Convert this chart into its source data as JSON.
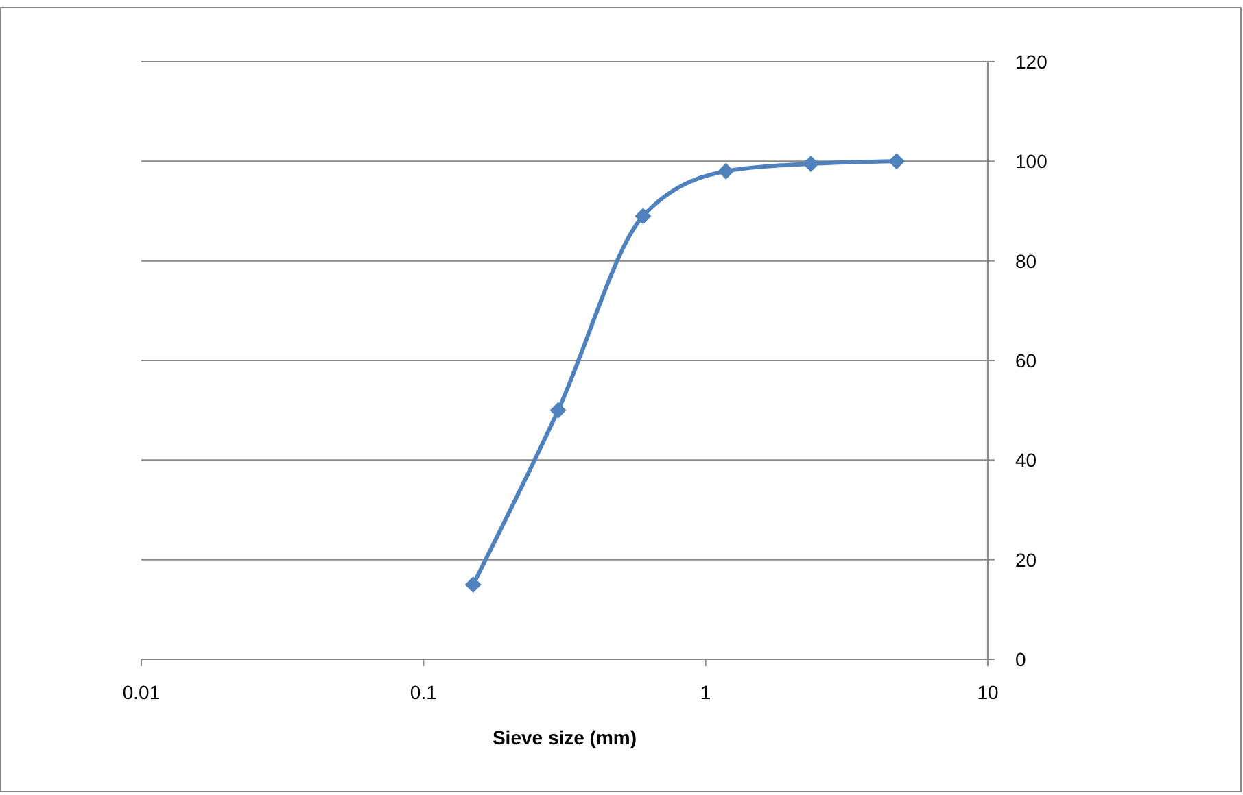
{
  "chart_data": {
    "type": "line",
    "xlabel": "Sieve size (mm)",
    "x": [
      0.15,
      0.3,
      0.6,
      1.18,
      2.36,
      4.75
    ],
    "series": [
      {
        "color": "#4f81bd",
        "values": [
          15,
          50,
          89,
          98,
          99.5,
          100
        ]
      }
    ],
    "log": "x",
    "xlim": [
      0.01,
      10
    ],
    "xticks": [
      0.01,
      0.1,
      1,
      10
    ],
    "ylim": [
      0,
      120
    ],
    "yticks": [
      0,
      20,
      40,
      60,
      80,
      100,
      120
    ],
    "grid": "y",
    "marker": "diamond",
    "line_style": "solid"
  }
}
